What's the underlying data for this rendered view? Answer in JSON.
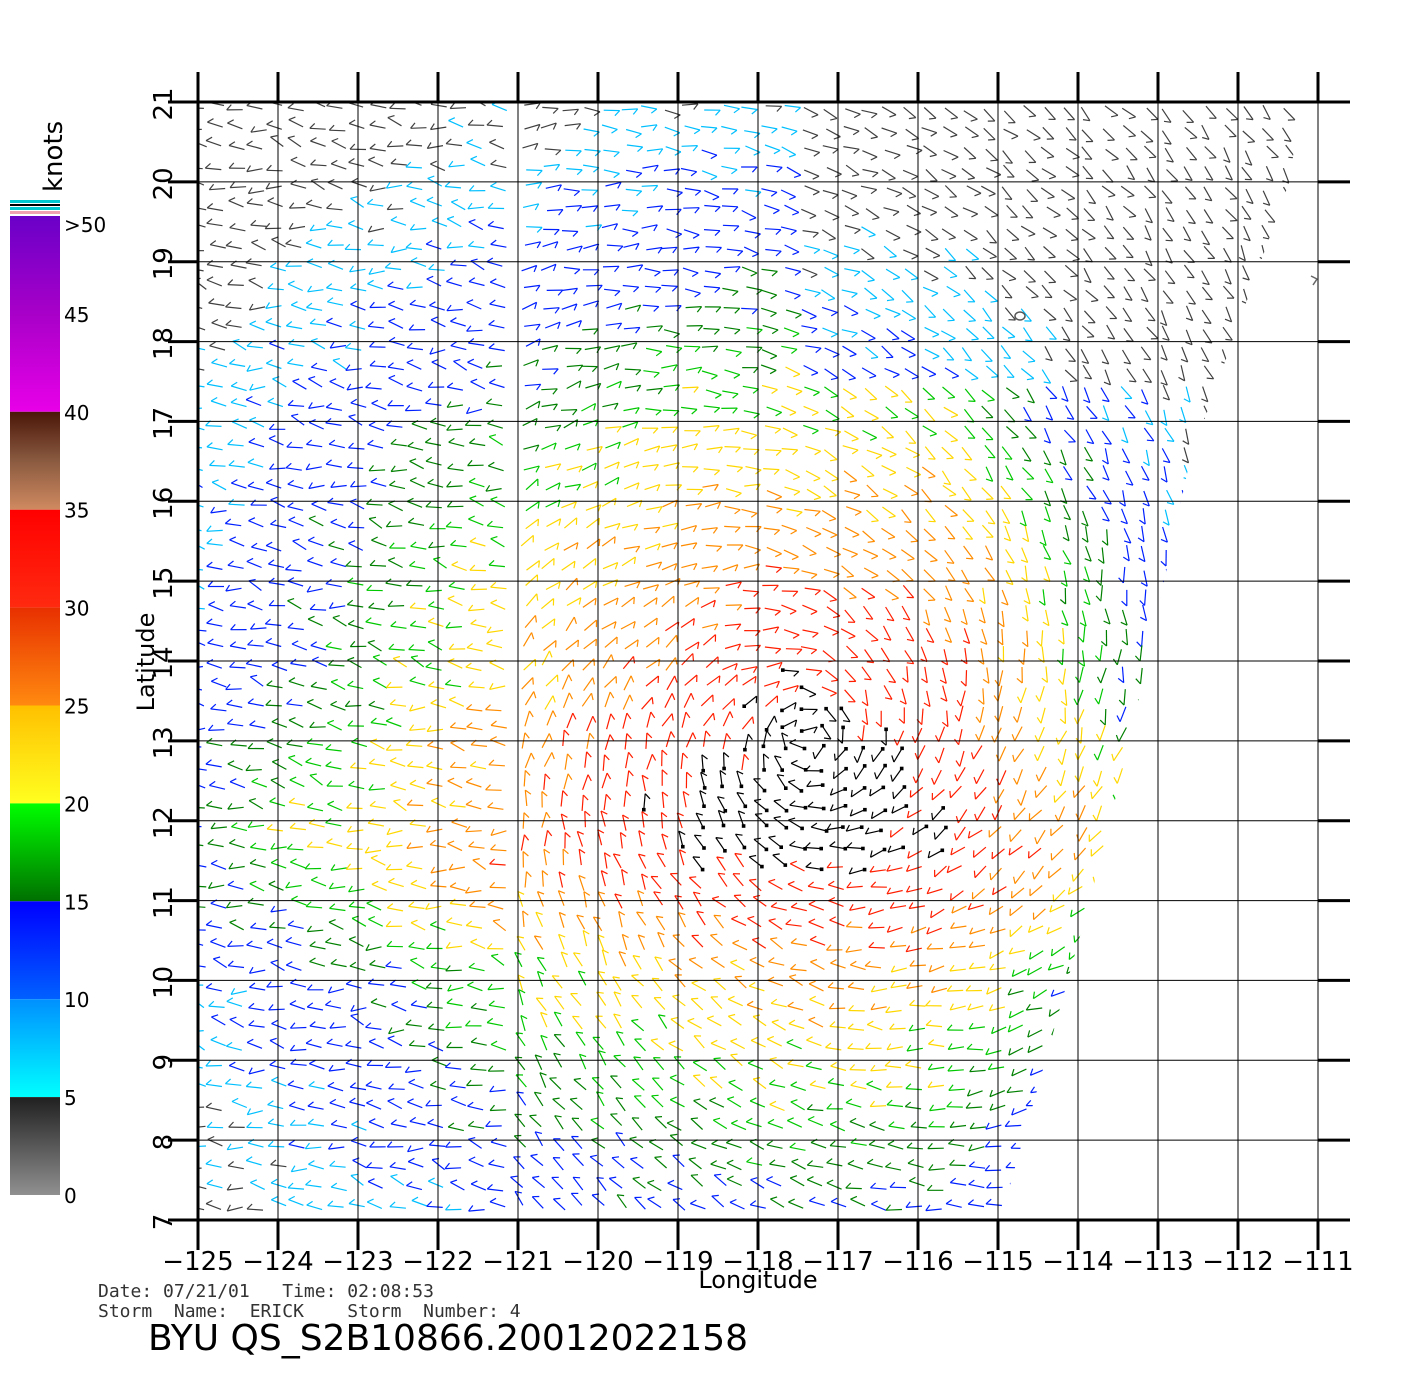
{
  "colorbar": {
    "unit_label": "knots",
    "tick_labels": [
      ">50",
      "45",
      "40",
      "35",
      "30",
      "25",
      "20",
      "15",
      "10",
      "5",
      "0"
    ],
    "bands": [
      {
        "from": 50,
        "to": 40,
        "colors": [
          "#6a00c8",
          "#a800c8",
          "#e800e8"
        ]
      },
      {
        "from": 40,
        "to": 35,
        "colors": [
          "#4a1608",
          "#8a5a40",
          "#d08a60"
        ]
      },
      {
        "from": 35,
        "to": 30,
        "colors": [
          "#ff0000",
          "#ff2a10"
        ]
      },
      {
        "from": 30,
        "to": 25,
        "colors": [
          "#e83000",
          "#ff8a10"
        ]
      },
      {
        "from": 25,
        "to": 20,
        "colors": [
          "#ffc000",
          "#ffff20"
        ]
      },
      {
        "from": 20,
        "to": 15,
        "colors": [
          "#00ff00",
          "#007000"
        ]
      },
      {
        "from": 15,
        "to": 10,
        "colors": [
          "#0000ff",
          "#0060ff"
        ]
      },
      {
        "from": 10,
        "to": 5,
        "colors": [
          "#0090ff",
          "#00ffff"
        ]
      },
      {
        "from": 5,
        "to": 0,
        "colors": [
          "#202020",
          "#909090"
        ]
      }
    ]
  },
  "map": {
    "x_axis_label": "Longitude",
    "y_axis_label": "Latitude",
    "lon_range": [
      -125,
      -111
    ],
    "lat_range": [
      7,
      21
    ],
    "lon_tick_labels": [
      "−125",
      "−124",
      "−123",
      "−122",
      "−121",
      "−120",
      "−119",
      "−118",
      "−117",
      "−116",
      "−115",
      "−114",
      "−113",
      "−112",
      "−111"
    ],
    "lat_tick_labels": [
      "7",
      "8",
      "9",
      "10",
      "11",
      "12",
      "13",
      "14",
      "15",
      "16",
      "17",
      "18",
      "19",
      "20",
      "21"
    ],
    "grid": true,
    "wind_colors": {
      "black": "#000000",
      "red": "#ff1e00",
      "orange": "#ff8c00",
      "yellow": "#ffd700",
      "green": "#00c800",
      "dark_green": "#008000",
      "blue": "#0020ff",
      "cyan": "#00bfff",
      "gray": "#404040"
    }
  },
  "footer": {
    "date_line": "Date: 07/21/01   Time: 02:08:53",
    "storm_line": "Storm  Name:  ERICK    Storm  Number: 4",
    "file_title": "BYU  QS_S2B10866.20012022158"
  }
}
